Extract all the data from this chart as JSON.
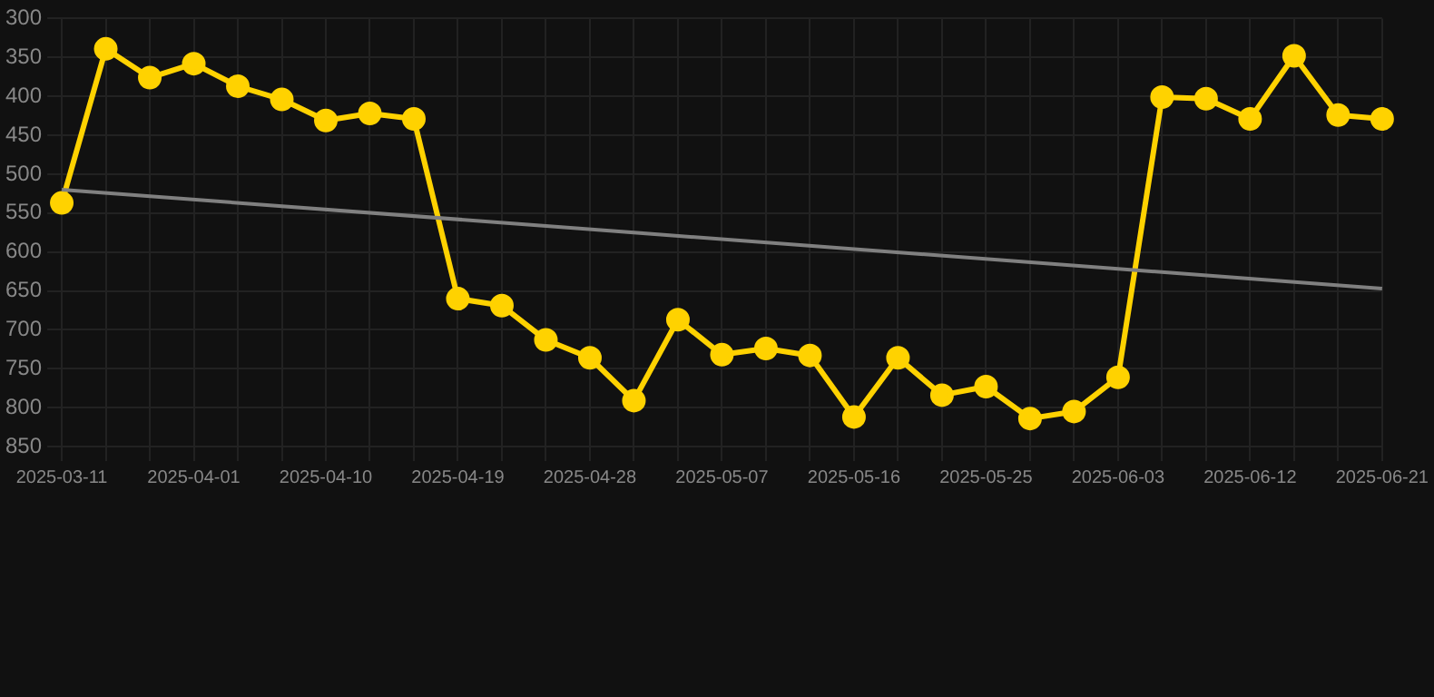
{
  "chart_data": {
    "type": "line",
    "categories": [
      "2025-03-11",
      null,
      null,
      "2025-04-01",
      null,
      null,
      "2025-04-10",
      null,
      null,
      "2025-04-19",
      null,
      null,
      "2025-04-28",
      null,
      null,
      "2025-05-07",
      null,
      null,
      "2025-05-16",
      null,
      null,
      "2025-05-25",
      null,
      null,
      "2025-06-03",
      null,
      null,
      "2025-06-12",
      null,
      null,
      "2025-06-21"
    ],
    "series": [
      {
        "color": "#ffd200",
        "marker": "circle",
        "values": [
          537,
          339,
          376,
          358,
          387,
          404,
          431,
          422,
          429,
          660,
          669,
          713,
          736,
          791,
          687,
          732,
          724,
          733,
          812,
          736,
          784,
          773,
          814,
          805,
          761,
          401,
          403,
          429,
          348,
          424,
          429
        ]
      },
      {
        "type": "line",
        "color": "#808080",
        "marker": "none",
        "values": [
          520,
          null,
          null,
          null,
          null,
          null,
          null,
          null,
          null,
          null,
          null,
          null,
          null,
          null,
          null,
          null,
          null,
          null,
          null,
          null,
          null,
          null,
          null,
          null,
          null,
          null,
          null,
          null,
          null,
          null,
          647
        ]
      }
    ],
    "ylim": [
      850,
      300
    ],
    "yticks": [
      300,
      350,
      400,
      450,
      500,
      550,
      600,
      650,
      700,
      750,
      800,
      850
    ],
    "grid": true,
    "legend": false,
    "line_style": "solid"
  }
}
